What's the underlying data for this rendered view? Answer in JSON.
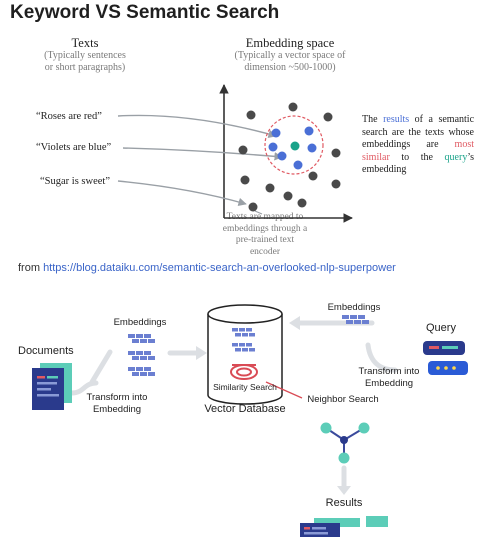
{
  "title": "Keyword VS Semantic Search",
  "texts": {
    "heading": "Texts",
    "subtitle_line1": "(Typically sentences",
    "subtitle_line2": "or short paragraphs)",
    "examples": [
      "“Roses are red”",
      "“Violets are blue”",
      "“Sugar is sweet”"
    ]
  },
  "embedding_space": {
    "heading": "Embedding space",
    "subtitle_line1": "(Typically a vector space of",
    "subtitle_line2": "dimension ~500-1000)"
  },
  "explanation": {
    "part1": "The ",
    "results": "results",
    "part2": " of a semantic search are the texts whose embeddings are ",
    "most_similar": "most similar",
    "part3": " to the ",
    "query": "query",
    "part4": "’s embedding"
  },
  "mapped_note": "Texts are mapped to embeddings through a pre-trained text encoder",
  "source": {
    "prefix": "from ",
    "url": "https://blog.dataiku.com/semantic-search-an-overlooked-nlp-superpower"
  },
  "flow": {
    "documents": "Documents",
    "embeddings_left": "Embeddings",
    "transform_left": "Transform into Embedding",
    "similarity_search": "Similarity Search",
    "vector_database": "Vector Database",
    "embeddings_right": "Embeddings",
    "query": "Query",
    "transform_right": "Transform into Embedding",
    "neighbor_search": "Neighbor Search",
    "results": "Results"
  },
  "colors": {
    "accent_blue": "#4a6fd6",
    "accent_red": "#e05a63",
    "accent_green": "#1aa38a",
    "navy": "#2a3a8c",
    "teal": "#5ccdb8"
  }
}
